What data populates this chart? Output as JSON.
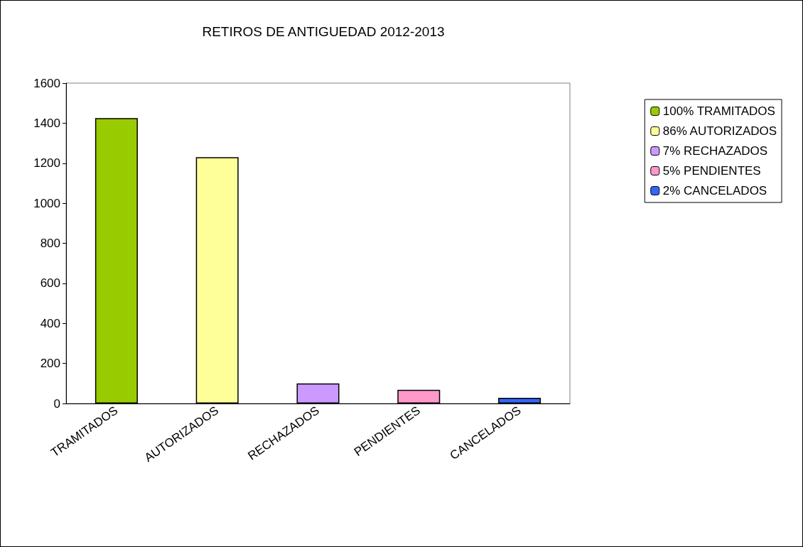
{
  "chart_data": {
    "type": "bar",
    "title": "RETIROS DE ANTIGUEDAD 2012-2013",
    "categories": [
      "TRAMITADOS",
      "AUTORIZADOS",
      "RECHAZADOS",
      "PENDIENTES",
      "CANCELADOS"
    ],
    "series": [
      {
        "name": "100% TRAMITADOS",
        "color": "#99cc00",
        "values": [
          1425,
          null,
          null,
          null,
          null
        ]
      },
      {
        "name": "86% AUTORIZADOS",
        "color": "#ffff99",
        "values": [
          null,
          1230,
          null,
          null,
          null
        ]
      },
      {
        "name": "7% RECHAZADOS",
        "color": "#cc99ff",
        "values": [
          null,
          null,
          100,
          null,
          null
        ]
      },
      {
        "name": "5% PENDIENTES",
        "color": "#ff99cc",
        "values": [
          null,
          null,
          null,
          68,
          null
        ]
      },
      {
        "name": "2% CANCELADOS",
        "color": "#3366ff",
        "values": [
          null,
          null,
          null,
          null,
          28
        ]
      }
    ],
    "ylim": [
      0,
      1600
    ],
    "yticks": [
      0,
      200,
      400,
      600,
      800,
      1000,
      1200,
      1400,
      1600
    ],
    "grid": false,
    "legend": "right"
  }
}
